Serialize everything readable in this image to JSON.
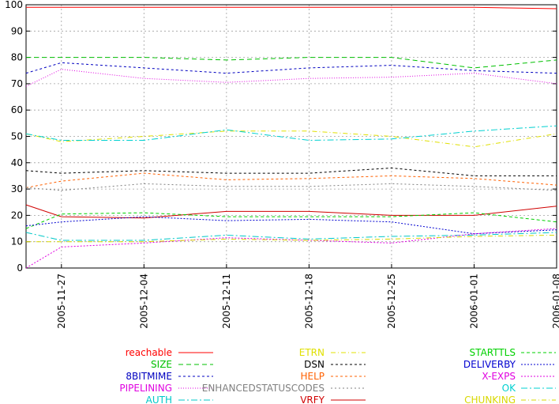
{
  "chart_data": {
    "type": "line",
    "title": "",
    "xlabel": "",
    "ylabel": "",
    "ylim": [
      0,
      100
    ],
    "yticks": [
      0,
      10,
      20,
      30,
      40,
      50,
      60,
      70,
      80,
      90,
      100
    ],
    "grid": true,
    "legend_position": "bottom",
    "x": [
      "2005-11-24",
      "2005-11-27",
      "2005-12-04",
      "2005-12-11",
      "2005-12-18",
      "2005-12-25",
      "2006-01-01",
      "2006-01-08"
    ],
    "xtick_labels": [
      "2005-11-27",
      "2005-12-04",
      "2005-12-11",
      "2005-12-18",
      "2005-12-25",
      "2006-01-01",
      "2006-01-08"
    ],
    "series": [
      {
        "name": "reachable",
        "color": "#ff0000",
        "dash": "",
        "values": [
          99,
          99,
          99,
          99,
          99,
          99,
          99,
          98.5
        ]
      },
      {
        "name": "SIZE",
        "color": "#00c000",
        "dash": "6,4",
        "values": [
          80,
          80,
          80,
          79,
          80,
          80,
          76,
          79
        ]
      },
      {
        "name": "8BITMIME",
        "color": "#0000c0",
        "dash": "3,3",
        "values": [
          74,
          78,
          76,
          74,
          76,
          77,
          75,
          74
        ]
      },
      {
        "name": "PIPELINING",
        "color": "#e000e0",
        "dash": "1,2",
        "values": [
          69,
          75.5,
          72,
          70.5,
          72,
          72.5,
          74,
          70
        ]
      },
      {
        "name": "AUTH",
        "color": "#00c8c8",
        "dash": "8,3,2,3",
        "values": [
          13.5,
          10.5,
          10.5,
          12.5,
          11,
          12,
          12.5,
          13.5
        ]
      },
      {
        "name": "ETRN",
        "color": "#e0e000",
        "dash": "6,3,1,3",
        "values": [
          51,
          48,
          50,
          52,
          52,
          50,
          46,
          51
        ]
      },
      {
        "name": "DSN",
        "color": "#000000",
        "dash": "3,3",
        "values": [
          37,
          36,
          37,
          36,
          36,
          38,
          35,
          35
        ]
      },
      {
        "name": "HELP",
        "color": "#ff6000",
        "dash": "3,3",
        "values": [
          30.5,
          33,
          36,
          33.5,
          34,
          35,
          34,
          31.5
        ]
      },
      {
        "name": "ENHANCEDSTATUSCODES",
        "color": "#808080",
        "dash": "2,3",
        "values": [
          30.5,
          29.5,
          32,
          31,
          31,
          32,
          31,
          29.5
        ]
      },
      {
        "name": "VRFY",
        "color": "#d00000",
        "dash": "",
        "values": [
          24,
          19.5,
          19,
          21.5,
          21.5,
          20,
          20,
          23.5
        ]
      },
      {
        "name": "STARTTLS",
        "color": "#00d000",
        "dash": "4,3",
        "values": [
          15,
          20.5,
          21,
          19.5,
          19.5,
          19.5,
          21,
          17.5
        ]
      },
      {
        "name": "DELIVERBY",
        "color": "#0000d0",
        "dash": "2,2",
        "values": [
          16,
          17.5,
          19.5,
          18,
          18.5,
          17.5,
          13,
          14.5
        ]
      },
      {
        "name": "X-EXPS",
        "color": "#e000e0",
        "dash": "2,2",
        "values": [
          0,
          8,
          9.5,
          11.5,
          10.5,
          9.5,
          13,
          15
        ]
      },
      {
        "name": "OK",
        "color": "#00d0d0",
        "dash": "8,3,2,3",
        "values": [
          51,
          48.5,
          48.5,
          52.5,
          48.5,
          49,
          52,
          54
        ]
      },
      {
        "name": "CHUNKING",
        "color": "#d8d800",
        "dash": "6,3,1,3",
        "values": [
          10,
          10,
          10,
          11,
          10.5,
          11,
          12,
          12.5
        ]
      }
    ]
  }
}
